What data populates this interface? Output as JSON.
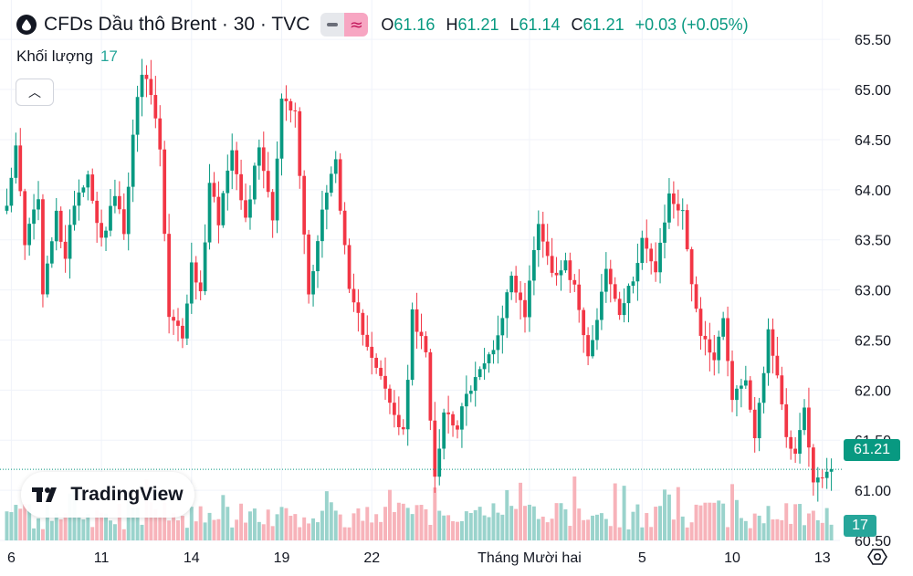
{
  "header": {
    "title": "CFDs Dầu thô Brent · 30 · TVC",
    "ohlc": [
      {
        "key": "O",
        "value": "61.16"
      },
      {
        "key": "H",
        "value": "61.21"
      },
      {
        "key": "L",
        "value": "61.14"
      },
      {
        "key": "C",
        "value": "61.21"
      }
    ],
    "change": "+0.03 (+0.05%)"
  },
  "volume_legend": {
    "label": "Khối lượng",
    "value": "17"
  },
  "logo": {
    "text": "TradingView"
  },
  "price_tag": "61.21",
  "volume_tag": "17",
  "colors": {
    "up": "#089981",
    "down": "#f23645",
    "vol_up": "#9ad3cc",
    "vol_down": "#f7b3ba",
    "grid": "#f0f3fa",
    "axis_text": "#131722",
    "last_price_line": "#089981"
  },
  "chart_data": {
    "type": "candlestick",
    "timeframe": "30",
    "last_price": 61.21,
    "ylim": [
      60.5,
      65.62
    ],
    "y_ticks": [
      "65.50",
      "65.00",
      "64.50",
      "64.00",
      "63.50",
      "63.00",
      "62.50",
      "62.00",
      "61.50",
      "61.00",
      "60.50"
    ],
    "x_ticks": [
      {
        "label": "6",
        "idx": 1
      },
      {
        "label": "11",
        "idx": 21
      },
      {
        "label": "14",
        "idx": 41
      },
      {
        "label": "19",
        "idx": 61
      },
      {
        "label": "22",
        "idx": 81
      },
      {
        "label": "Tháng Mười hai",
        "idx": 116
      },
      {
        "label": "5",
        "idx": 141
      },
      {
        "label": "10",
        "idx": 161
      },
      {
        "label": "13",
        "idx": 181
      }
    ],
    "close_anchors": [
      [
        0,
        63.9
      ],
      [
        2,
        64.4
      ],
      [
        4,
        63.5
      ],
      [
        7,
        63.9
      ],
      [
        8,
        62.95
      ],
      [
        11,
        63.75
      ],
      [
        13,
        63.3
      ],
      [
        15,
        63.9
      ],
      [
        18,
        64.15
      ],
      [
        21,
        63.5
      ],
      [
        24,
        63.95
      ],
      [
        26,
        63.55
      ],
      [
        28,
        64.6
      ],
      [
        30,
        65.15
      ],
      [
        32,
        64.95
      ],
      [
        34,
        64.4
      ],
      [
        36,
        62.7
      ],
      [
        39,
        62.55
      ],
      [
        41,
        63.25
      ],
      [
        43,
        62.95
      ],
      [
        45,
        64.1
      ],
      [
        47,
        63.7
      ],
      [
        50,
        64.45
      ],
      [
        53,
        63.7
      ],
      [
        56,
        64.45
      ],
      [
        59,
        63.75
      ],
      [
        61,
        64.9
      ],
      [
        64,
        64.75
      ],
      [
        67,
        62.95
      ],
      [
        70,
        63.8
      ],
      [
        73,
        64.3
      ],
      [
        76,
        62.95
      ],
      [
        79,
        62.6
      ],
      [
        82,
        62.25
      ],
      [
        85,
        61.85
      ],
      [
        88,
        61.55
      ],
      [
        90,
        62.75
      ],
      [
        93,
        62.35
      ],
      [
        95,
        61.15
      ],
      [
        97,
        61.8
      ],
      [
        100,
        61.65
      ],
      [
        103,
        62.05
      ],
      [
        106,
        62.25
      ],
      [
        109,
        62.55
      ],
      [
        112,
        63.15
      ],
      [
        115,
        62.75
      ],
      [
        118,
        63.7
      ],
      [
        121,
        63.15
      ],
      [
        124,
        63.3
      ],
      [
        127,
        62.85
      ],
      [
        129,
        62.35
      ],
      [
        131,
        62.75
      ],
      [
        133,
        63.2
      ],
      [
        136,
        62.75
      ],
      [
        139,
        63.1
      ],
      [
        141,
        63.55
      ],
      [
        144,
        63.15
      ],
      [
        147,
        63.95
      ],
      [
        150,
        63.75
      ],
      [
        152,
        63.1
      ],
      [
        154,
        62.55
      ],
      [
        157,
        62.35
      ],
      [
        159,
        62.7
      ],
      [
        161,
        61.95
      ],
      [
        164,
        62.1
      ],
      [
        166,
        61.55
      ],
      [
        169,
        62.55
      ],
      [
        171,
        62.2
      ],
      [
        173,
        61.5
      ],
      [
        175,
        61.4
      ],
      [
        177,
        61.85
      ],
      [
        179,
        61.05
      ],
      [
        181,
        61.1
      ],
      [
        183,
        61.21
      ]
    ]
  }
}
